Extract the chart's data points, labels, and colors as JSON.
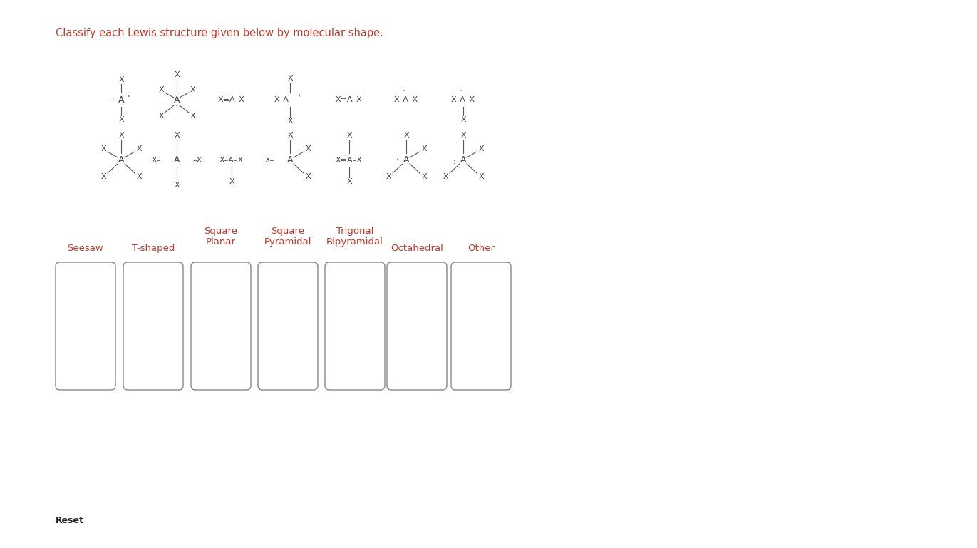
{
  "title": "Classify each Lewis structure given below by molecular shape.",
  "title_color": "#c0392b",
  "title_fontsize": 10.5,
  "background_color": "#ffffff",
  "gray": "#444444",
  "label_color": "#c0392b",
  "label_fontsize": 9.5,
  "box_color": "#888888",
  "reset_fontsize": 9,
  "struct_fontsize": 8.0,
  "categories": [
    "Seesaw",
    "T-shaped",
    "Square\nPlanar",
    "Square\nPyramidal",
    "Trigonal\nBipyramidal",
    "Octahedral",
    "Other"
  ]
}
